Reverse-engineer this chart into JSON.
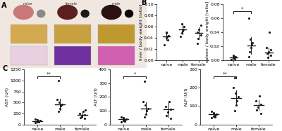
{
  "panel_B_left": {
    "ylabel": "liver / body weight [ratio]",
    "ylim": [
      0.0,
      0.1
    ],
    "yticks": [
      0.0,
      0.02,
      0.04,
      0.06,
      0.08,
      0.1
    ],
    "groups": [
      "naive",
      "male",
      "female"
    ],
    "means": [
      0.042,
      0.055,
      0.048
    ],
    "errors": [
      0.006,
      0.009,
      0.011
    ],
    "points": [
      [
        0.028,
        0.036,
        0.04,
        0.042,
        0.044,
        0.048,
        0.05
      ],
      [
        0.042,
        0.048,
        0.052,
        0.055,
        0.06,
        0.065
      ],
      [
        0.03,
        0.038,
        0.045,
        0.05,
        0.055,
        0.062
      ]
    ],
    "sig_pairs": [],
    "sig_labels": []
  },
  "panel_B_right": {
    "ylabel": "spleen / body weight [ratio]",
    "ylim": [
      0.0,
      0.08
    ],
    "yticks": [
      0.0,
      0.02,
      0.04,
      0.06,
      0.08
    ],
    "groups": [
      "naive",
      "male",
      "female"
    ],
    "means": [
      0.004,
      0.021,
      0.011
    ],
    "errors": [
      0.002,
      0.012,
      0.007
    ],
    "points": [
      [
        0.001,
        0.002,
        0.003,
        0.004,
        0.005,
        0.006,
        0.007
      ],
      [
        0.005,
        0.012,
        0.018,
        0.022,
        0.025,
        0.03,
        0.06
      ],
      [
        0.004,
        0.007,
        0.01,
        0.012,
        0.015,
        0.018,
        0.04
      ]
    ],
    "sig_pairs": [
      [
        0,
        1
      ]
    ],
    "sig_labels": [
      "*"
    ]
  },
  "panel_C_1": {
    "ylabel": "AST (U/l)",
    "ylim": [
      0,
      1250
    ],
    "yticks": [
      0,
      250,
      500,
      750,
      1000,
      1250
    ],
    "groups": [
      "naive",
      "male",
      "female"
    ],
    "means": [
      80,
      460,
      215
    ],
    "errors": [
      25,
      130,
      60
    ],
    "points": [
      [
        50,
        55,
        65,
        75,
        85,
        95,
        105,
        115
      ],
      [
        300,
        360,
        420,
        460,
        500,
        560,
        1000
      ],
      [
        130,
        160,
        190,
        220,
        250,
        290,
        330
      ]
    ],
    "sig_pairs": [
      [
        0,
        1
      ]
    ],
    "sig_labels": [
      "**"
    ]
  },
  "panel_C_2": {
    "ylabel": "ALT (U/l)",
    "ylim": [
      0,
      400
    ],
    "yticks": [
      0,
      100,
      200,
      300,
      400
    ],
    "groups": [
      "naive",
      "male",
      "female"
    ],
    "means": [
      40,
      115,
      110
    ],
    "errors": [
      12,
      45,
      55
    ],
    "points": [
      [
        20,
        25,
        30,
        35,
        40,
        45,
        50,
        55
      ],
      [
        55,
        75,
        100,
        115,
        140,
        165,
        315
      ],
      [
        45,
        65,
        90,
        110,
        130,
        165
      ]
    ],
    "sig_pairs": [
      [
        0,
        1
      ]
    ],
    "sig_labels": [
      "*"
    ]
  },
  "panel_C_3": {
    "ylabel": "ALP (U/l)",
    "ylim": [
      0,
      300
    ],
    "yticks": [
      0,
      100,
      200,
      300
    ],
    "groups": [
      "naive",
      "male",
      "female"
    ],
    "means": [
      55,
      145,
      105
    ],
    "errors": [
      10,
      40,
      28
    ],
    "points": [
      [
        35,
        40,
        45,
        50,
        55,
        60,
        65,
        70
      ],
      [
        75,
        105,
        130,
        150,
        170,
        200,
        255
      ],
      [
        60,
        80,
        95,
        110,
        130,
        155
      ]
    ],
    "sig_pairs": [
      [
        0,
        1
      ]
    ],
    "sig_labels": [
      "**"
    ]
  },
  "dot_color": "#1a1a1a",
  "dot_size": 5,
  "line_color": "#1a1a1a",
  "sig_line_color": "#222222",
  "background_color": "#ffffff",
  "font_size": 5,
  "tick_font_size": 4.5,
  "label_font_size": 4.5
}
